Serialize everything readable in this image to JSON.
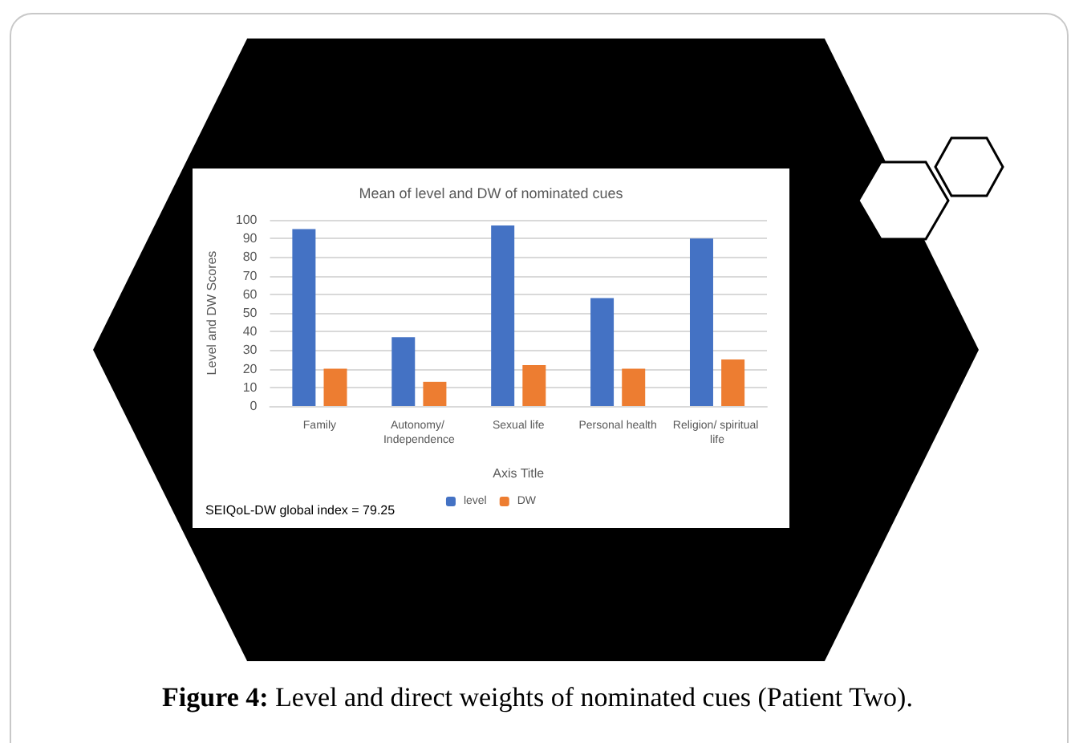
{
  "chart_data": {
    "type": "bar",
    "title": "Mean of level and DW of nominated cues",
    "xlabel": "Axis Title",
    "ylabel": "Level and DW Scores",
    "categories": [
      "Family",
      "Autonomy/ Independence",
      "Sexual life",
      "Personal health",
      "Religion/ spiritual life"
    ],
    "series": [
      {
        "name": "level",
        "color": "#4472c4",
        "values": [
          95,
          37,
          97,
          58,
          90
        ]
      },
      {
        "name": "DW",
        "color": "#ed7d31",
        "values": [
          20,
          13,
          22,
          20,
          25
        ]
      }
    ],
    "ylim": [
      0,
      100
    ],
    "yticks": [
      0,
      10,
      20,
      30,
      40,
      50,
      60,
      70,
      80,
      90,
      100
    ],
    "grid": "y",
    "legend": "bottom",
    "annotations": [
      "SEIQoL-DW global index = 79.25",
      "Figure 4: Level and direct weights of nominated cues (Patient Two)."
    ]
  }
}
